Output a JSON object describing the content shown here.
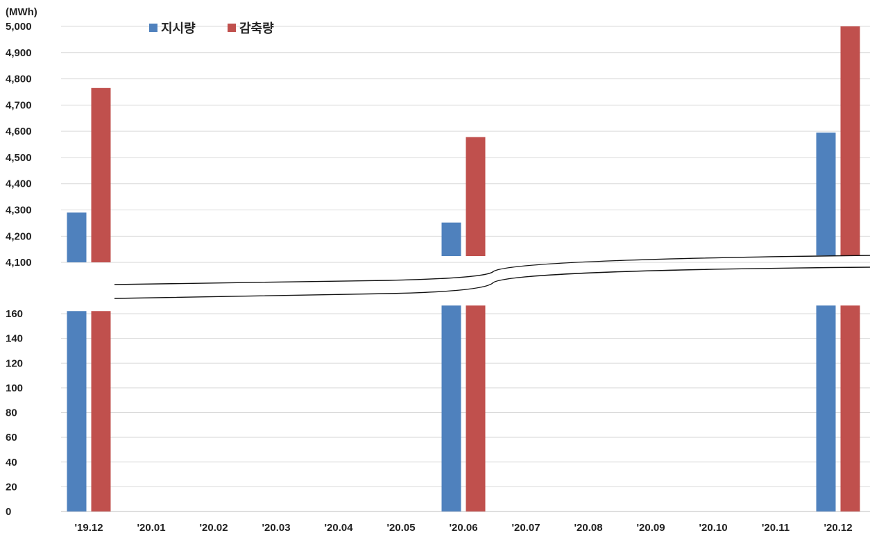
{
  "chart_data": {
    "type": "bar",
    "unit_label": "(MWh)",
    "categories": [
      "'19.12",
      "'20.01",
      "'20.02",
      "'20.03",
      "'20.04",
      "'20.05",
      "'20.06",
      "'20.07",
      "'20.08",
      "'20.09",
      "'20.10",
      "'20.11",
      "'20.12"
    ],
    "series": [
      {
        "name": "지시량",
        "color": "#4f81bd",
        "values": [
          4290,
          null,
          null,
          null,
          null,
          null,
          4252,
          null,
          null,
          null,
          null,
          null,
          4595
        ]
      },
      {
        "name": "감축량",
        "color": "#c0504d",
        "values": [
          4765,
          null,
          null,
          null,
          null,
          null,
          4578,
          null,
          null,
          null,
          null,
          null,
          5000
        ]
      }
    ],
    "axis_break": true,
    "lower_segment": {
      "ylim": [
        0,
        170
      ],
      "ticks": [
        "0",
        "20",
        "40",
        "60",
        "80",
        "100",
        "120",
        "140",
        "160"
      ]
    },
    "upper_segment": {
      "ylim": [
        4050,
        5000
      ],
      "ticks": [
        "4,100",
        "4,200",
        "4,300",
        "4,400",
        "4,500",
        "4,600",
        "4,700",
        "4,800",
        "4,900",
        "5,000"
      ]
    },
    "legend_position": "top-left",
    "grid": true
  }
}
